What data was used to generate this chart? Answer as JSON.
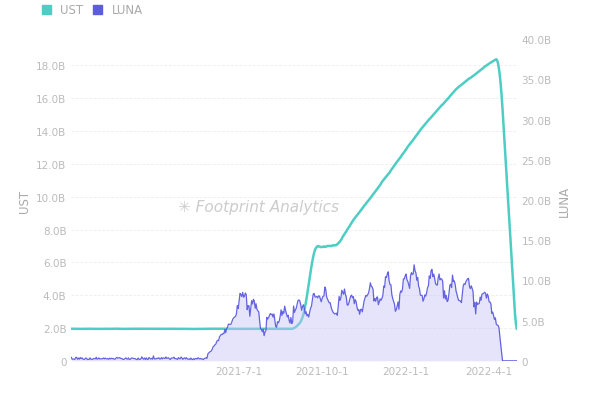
{
  "legend_labels": [
    "UST",
    "LUNA"
  ],
  "ust_color": "#4ECDC4",
  "luna_color": "#5C5CE0",
  "luna_fill_color": "#C8C5F5",
  "background_color": "#FFFFFF",
  "left_ylabel": "UST",
  "right_ylabel": "LUNA",
  "left_ylim": [
    0,
    19600000000
  ],
  "right_ylim": [
    0,
    40000000000
  ],
  "left_yticks": [
    0,
    2000000000,
    4000000000,
    6000000000,
    8000000000,
    10000000000,
    12000000000,
    14000000000,
    16000000000,
    18000000000
  ],
  "right_yticks": [
    0,
    5000000000,
    10000000000,
    15000000000,
    20000000000,
    25000000000,
    30000000000,
    35000000000,
    40000000000
  ],
  "left_ytick_labels": [
    "0",
    "2.0B",
    "4.0B",
    "6.0B",
    "8.0B",
    "10.0B",
    "12.0B",
    "14.0B",
    "16.0B",
    "18.0B"
  ],
  "right_ytick_labels": [
    "0",
    "5.0B",
    "10.0B",
    "15.0B",
    "20.0B",
    "25.0B",
    "30.0B",
    "35.0B",
    "40.0B"
  ],
  "watermark_text": "Footprint Analytics",
  "watermark_color": "#CCCCCC",
  "tick_color": "#BBBBBB",
  "label_color": "#AAAAAA",
  "grid_color": "#EEEEEE",
  "grid_style": "--",
  "x_tick_labels": [
    "2021-7-1",
    "2021-10-1",
    "2022-1-1",
    "2022-4-1"
  ],
  "x_tick_positions": [
    0.375,
    0.5625,
    0.75,
    0.9375
  ]
}
